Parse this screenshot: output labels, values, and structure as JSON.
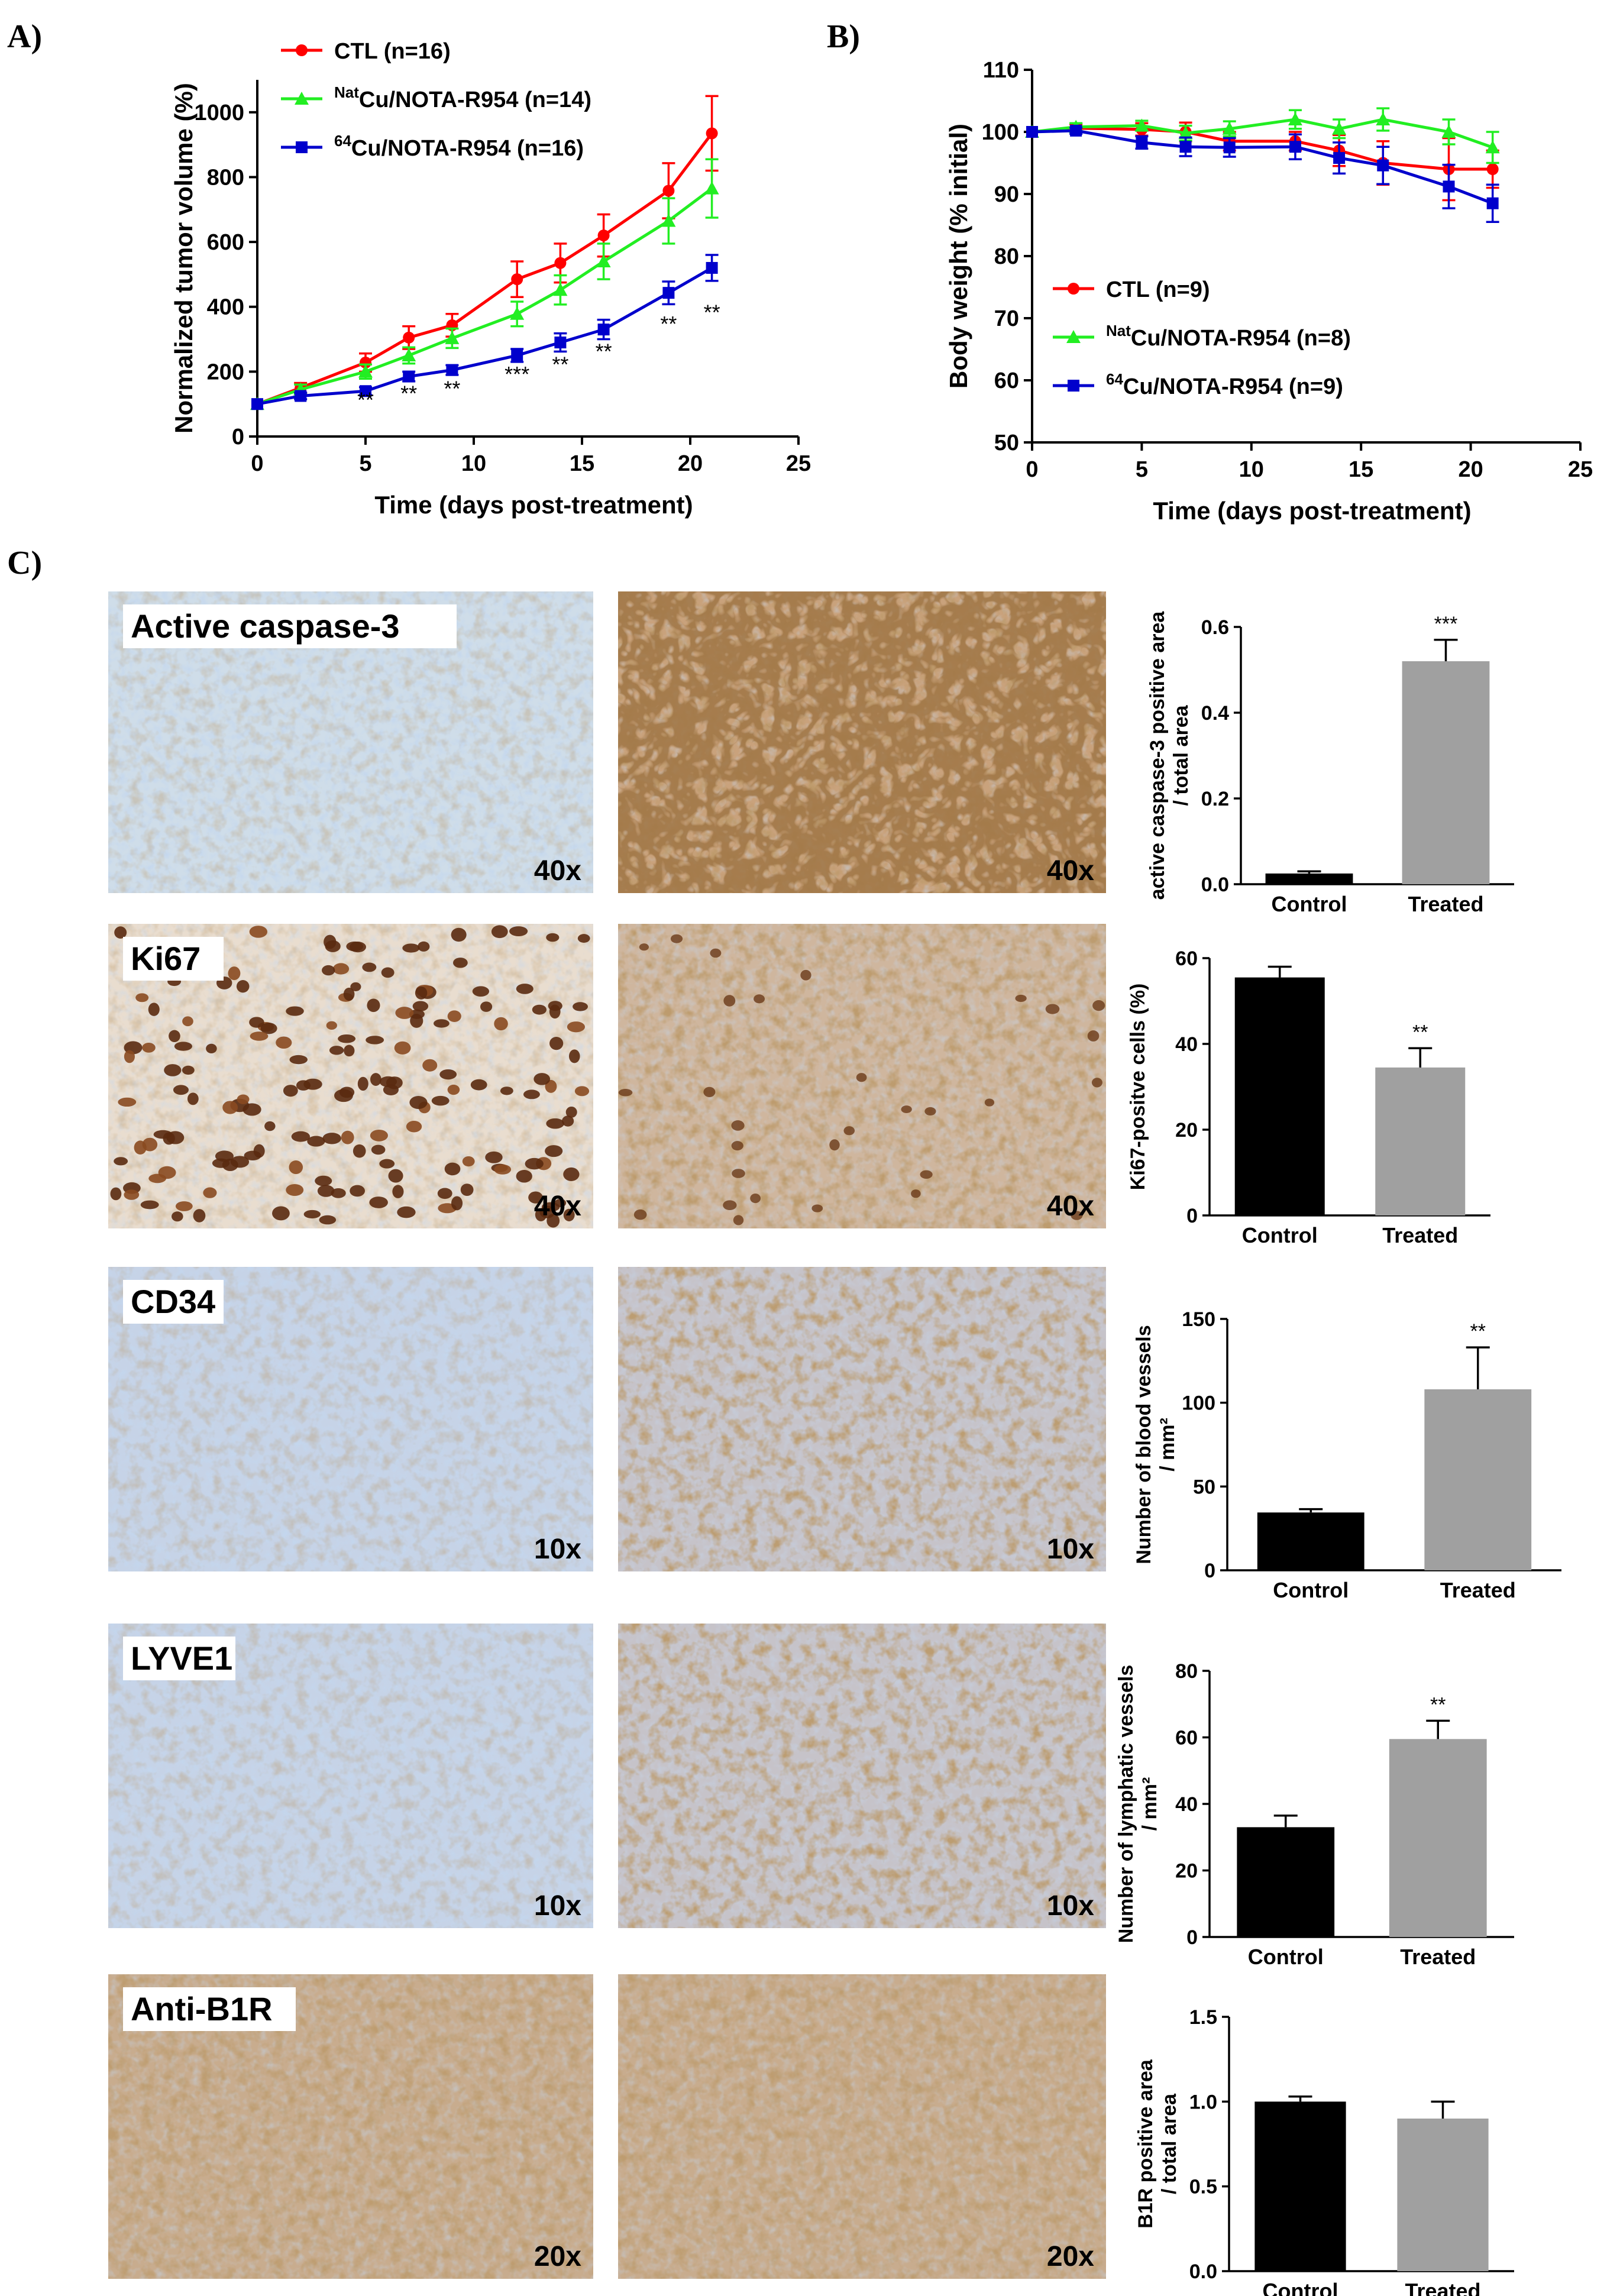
{
  "panels": {
    "A": "A)",
    "B": "B)",
    "C": "C)"
  },
  "colors": {
    "ctl": "#ff0000",
    "nat": "#22ee22",
    "cu64": "#0000cc",
    "control_bar": "#000000",
    "treated_bar": "#a0a0a0"
  },
  "chart_data": [
    {
      "id": "tumor",
      "type": "line",
      "title": "",
      "xlabel": "Time (days post-treatment)",
      "ylabel": "Normalized tumor volume (%)",
      "xlim": [
        0,
        25
      ],
      "ylim": [
        0,
        1100
      ],
      "xticks": [
        0,
        5,
        10,
        15,
        20,
        25
      ],
      "yticks": [
        0,
        200,
        400,
        600,
        800,
        1000
      ],
      "x": [
        0,
        2,
        5,
        7,
        9,
        12,
        14,
        16,
        19,
        21
      ],
      "legend_position": "top-left",
      "series": [
        {
          "name_prefix": "",
          "name_sup": "",
          "name_main": "CTL (n=16)",
          "color": "#ff0000",
          "marker": "circle",
          "values": [
            100,
            150,
            228,
            305,
            343,
            485,
            535,
            620,
            758,
            935
          ],
          "errors": [
            0,
            15,
            28,
            35,
            35,
            55,
            60,
            65,
            85,
            115
          ]
        },
        {
          "name_prefix": "",
          "name_sup": "Nat",
          "name_main": "Cu/NOTA-R954 (n=14)",
          "color": "#22ee22",
          "marker": "triangle",
          "values": [
            100,
            145,
            200,
            250,
            303,
            378,
            452,
            540,
            665,
            765
          ],
          "errors": [
            0,
            15,
            22,
            25,
            30,
            38,
            45,
            55,
            70,
            90
          ]
        },
        {
          "name_prefix": "",
          "name_sup": "64",
          "name_main": "Cu/NOTA-R954 (n=16)",
          "color": "#0000cc",
          "marker": "square",
          "values": [
            100,
            125,
            140,
            185,
            205,
            250,
            290,
            330,
            443,
            520
          ],
          "errors": [
            0,
            10,
            12,
            15,
            15,
            20,
            28,
            30,
            35,
            40
          ]
        }
      ],
      "annotations": [
        {
          "x": 5,
          "y": 90,
          "text": "**"
        },
        {
          "x": 7,
          "y": 110,
          "text": "**"
        },
        {
          "x": 9,
          "y": 125,
          "text": "**"
        },
        {
          "x": 12,
          "y": 170,
          "text": "***"
        },
        {
          "x": 14,
          "y": 200,
          "text": "**"
        },
        {
          "x": 16,
          "y": 240,
          "text": "**"
        },
        {
          "x": 19,
          "y": 325,
          "text": "**"
        },
        {
          "x": 21,
          "y": 360,
          "text": "**"
        }
      ]
    },
    {
      "id": "weight",
      "type": "line",
      "title": "",
      "xlabel": "Time (days post-treatment)",
      "ylabel": "Body weight (% initial)",
      "xlim": [
        0,
        25
      ],
      "ylim": [
        50,
        110
      ],
      "xticks": [
        0,
        5,
        10,
        15,
        20,
        25
      ],
      "yticks": [
        50,
        60,
        70,
        80,
        90,
        100,
        110
      ],
      "x": [
        0,
        2,
        5,
        7,
        9,
        12,
        14,
        16,
        19,
        21
      ],
      "legend_position": "bottom-left",
      "series": [
        {
          "name_sup": "",
          "name_main": "CTL (n=9)",
          "color": "#ff0000",
          "marker": "circle",
          "values": [
            100,
            100.6,
            100.4,
            100,
            98.5,
            98.5,
            97,
            95,
            94,
            94
          ],
          "errors": [
            0,
            0.6,
            1.0,
            1.5,
            1.5,
            1.5,
            2.5,
            3.5,
            5,
            3
          ]
        },
        {
          "name_sup": "Nat",
          "name_main": "Cu/NOTA-R954 (n=8)",
          "color": "#22ee22",
          "marker": "triangle",
          "values": [
            100,
            100.8,
            101,
            99.8,
            100.5,
            102,
            100.5,
            102,
            100,
            97.5
          ],
          "errors": [
            0,
            0.6,
            0.8,
            1.2,
            1.2,
            1.5,
            1.5,
            1.8,
            2,
            2.5
          ]
        },
        {
          "name_sup": "64",
          "name_main": "Cu/NOTA-R954 (n=9)",
          "color": "#0000cc",
          "marker": "square",
          "values": [
            100,
            100.2,
            98.3,
            97.6,
            97.5,
            97.6,
            95.8,
            94.6,
            91.2,
            88.5
          ],
          "errors": [
            0,
            0.5,
            1.0,
            1.5,
            1.5,
            2,
            2.5,
            3,
            3.5,
            3
          ]
        }
      ]
    },
    {
      "id": "caspase",
      "type": "bar",
      "title": "",
      "ylabel_lines": [
        "active caspase-3 positive area",
        "/ total area"
      ],
      "categories": [
        "Control",
        "Treated"
      ],
      "values": [
        0.025,
        0.52
      ],
      "errors": [
        0.005,
        0.05
      ],
      "ylim": [
        0,
        0.6
      ],
      "yticks": [
        "0.0",
        "0.2",
        "0.4",
        "0.6"
      ],
      "significance": [
        "",
        "***"
      ]
    },
    {
      "id": "ki67",
      "type": "bar",
      "title": "",
      "ylabel_lines": [
        "Ki67-positve cells (%)"
      ],
      "categories": [
        "Control",
        "Treated"
      ],
      "values": [
        55.5,
        34.5
      ],
      "errors": [
        2.5,
        4.5
      ],
      "ylim": [
        0,
        60
      ],
      "yticks": [
        "0",
        "20",
        "40",
        "60"
      ],
      "significance": [
        "",
        "**"
      ]
    },
    {
      "id": "cd34",
      "type": "bar",
      "title": "",
      "ylabel_lines": [
        "Number of blood vessels",
        "/ mm²"
      ],
      "categories": [
        "Control",
        "Treated"
      ],
      "values": [
        34.5,
        108
      ],
      "errors": [
        2,
        25
      ],
      "ylim": [
        0,
        150
      ],
      "yticks": [
        "0",
        "50",
        "100",
        "150"
      ],
      "significance": [
        "",
        "**"
      ]
    },
    {
      "id": "lyve1",
      "type": "bar",
      "title": "",
      "ylabel_lines": [
        "Number of  lymphatic vessels",
        "/ mm²"
      ],
      "categories": [
        "Control",
        "Treated"
      ],
      "values": [
        33,
        59.5
      ],
      "errors": [
        3.5,
        5.5
      ],
      "ylim": [
        0,
        80
      ],
      "yticks": [
        "0",
        "20",
        "40",
        "60",
        "80"
      ],
      "significance": [
        "",
        "**"
      ]
    },
    {
      "id": "b1r",
      "type": "bar",
      "title": "",
      "ylabel_lines": [
        "B1R positive area",
        "/ total area"
      ],
      "categories": [
        "Control",
        "Treated"
      ],
      "values": [
        1.0,
        0.9
      ],
      "errors": [
        0.03,
        0.1
      ],
      "ylim": [
        0,
        1.5
      ],
      "yticks": [
        "0.0",
        "0.5",
        "1.0",
        "1.5"
      ],
      "significance": [
        "",
        ""
      ]
    }
  ],
  "micrographs": [
    {
      "stain": "Active caspase-3",
      "mag_control": "40x",
      "mag_treated": "40x"
    },
    {
      "stain": "Ki67",
      "mag_control": "40x",
      "mag_treated": "40x"
    },
    {
      "stain": "CD34",
      "mag_control": "10x",
      "mag_treated": "10x"
    },
    {
      "stain": "LYVE1",
      "mag_control": "10x",
      "mag_treated": "10x"
    },
    {
      "stain": "Anti-B1R",
      "mag_control": "20x",
      "mag_treated": "20x"
    }
  ]
}
